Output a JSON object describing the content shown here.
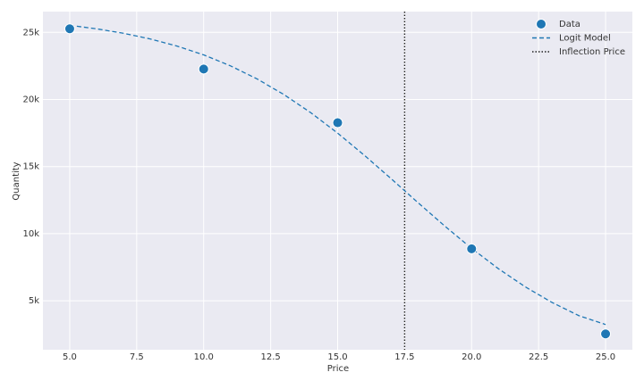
{
  "chart_data": {
    "type": "scatter",
    "xlabel": "Price",
    "ylabel": "Quantity",
    "xlim": [
      4,
      26
    ],
    "ylim": [
      1350,
      26550
    ],
    "xticks": [
      {
        "value": 5,
        "label": "5.0"
      },
      {
        "value": 7.5,
        "label": "7.5"
      },
      {
        "value": 10,
        "label": "10.0"
      },
      {
        "value": 12.5,
        "label": "12.5"
      },
      {
        "value": 15,
        "label": "15.0"
      },
      {
        "value": 17.5,
        "label": "17.5"
      },
      {
        "value": 20,
        "label": "20.0"
      },
      {
        "value": 22.5,
        "label": "22.5"
      },
      {
        "value": 25,
        "label": "25.0"
      }
    ],
    "yticks": [
      {
        "value": 5000,
        "label": "5k"
      },
      {
        "value": 10000,
        "label": "10k"
      },
      {
        "value": 15000,
        "label": "15k"
      },
      {
        "value": 20000,
        "label": "20k"
      },
      {
        "value": 25000,
        "label": "25k"
      }
    ],
    "grid": true,
    "legend": "upper right",
    "series": [
      {
        "name": "Data",
        "kind": "scatter",
        "color": "#1f77b4",
        "x": [
          5,
          10,
          15,
          20,
          25
        ],
        "values": [
          25270,
          22270,
          18270,
          8870,
          2530
        ]
      },
      {
        "name": "Logit Model",
        "kind": "line",
        "linestyle": "dashed",
        "color": "#1f77b4",
        "x": [
          5,
          6,
          7,
          8,
          9,
          10,
          11,
          12,
          13,
          14,
          15,
          16,
          17,
          18,
          19,
          20,
          21,
          22,
          23,
          24,
          25
        ],
        "values": [
          25527,
          25268,
          24936,
          24515,
          23983,
          23325,
          22508,
          21525,
          20359,
          19012,
          17493,
          15836,
          14090,
          12310,
          10564,
          8907,
          7389,
          6041,
          4875,
          3892,
          3230
        ]
      }
    ],
    "inflection": {
      "name": "Inflection Price",
      "x": 17.5,
      "color": "#222222",
      "linestyle": "dotted"
    }
  }
}
